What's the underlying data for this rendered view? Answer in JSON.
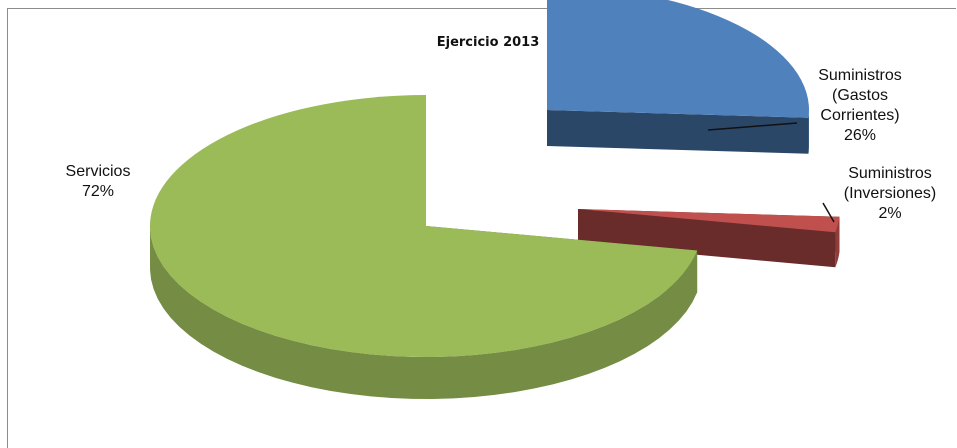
{
  "chart_data": {
    "type": "pie",
    "style": "3d-exploded",
    "title": "Ejercicio 2013",
    "slices": [
      {
        "label_lines": [
          "Servicios",
          "72%"
        ],
        "name": "Servicios",
        "value": 72,
        "color": "#9bbb59"
      },
      {
        "label_lines": [
          "Suministros",
          "(Gastos",
          "Corrientes)",
          "26%"
        ],
        "name": "Suministros (Gastos Corrientes)",
        "value": 26,
        "color": "#4f81bd"
      },
      {
        "label_lines": [
          "Suministros",
          "(Inversiones)",
          "2%"
        ],
        "name": "Suministros (Inversiones)",
        "value": 2,
        "color": "#c0504d"
      }
    ],
    "legend": "none"
  }
}
